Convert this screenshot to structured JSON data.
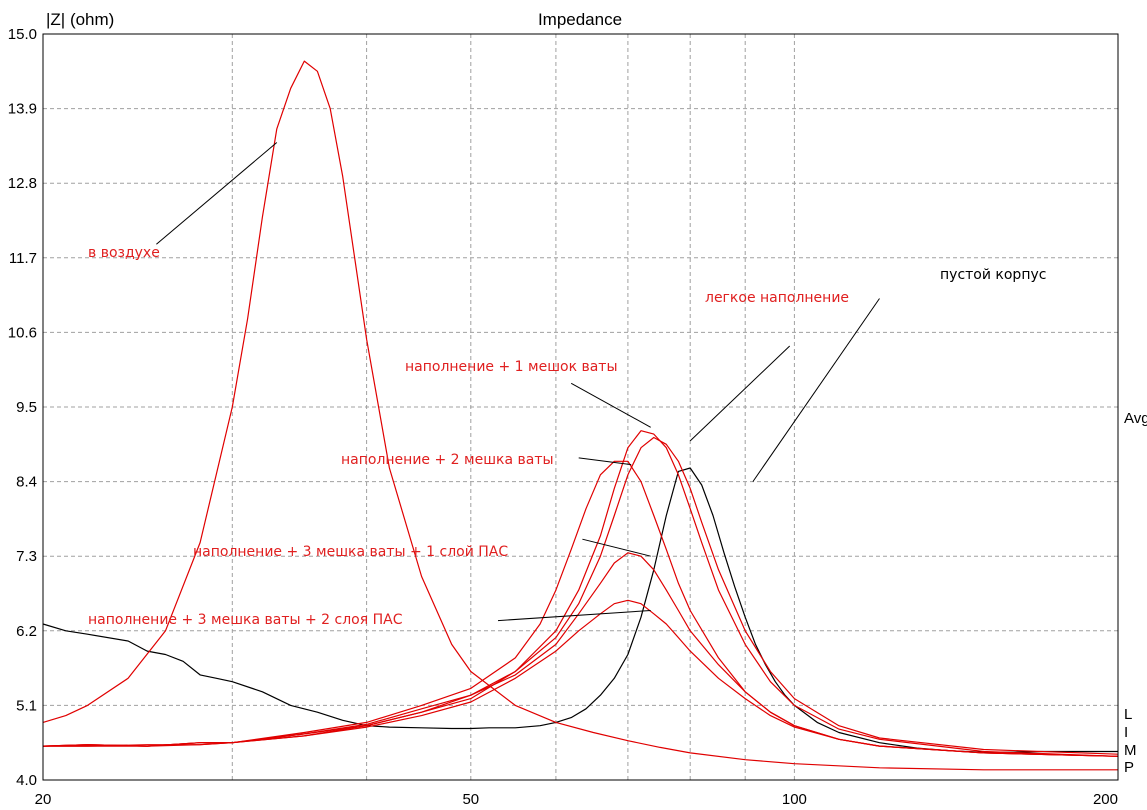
{
  "chart_data": {
    "type": "line",
    "title": "Impedance",
    "ylabel": "|Z| (ohm)",
    "xscale": "log",
    "xlim": [
      20,
      200
    ],
    "ylim": [
      4.0,
      15.0
    ],
    "x_ticks": [
      "20",
      "50",
      "100",
      "200"
    ],
    "y_ticks": [
      "15.0",
      "13.9",
      "12.8",
      "11.7",
      "10.6",
      "9.5",
      "8.4",
      "7.3",
      "6.2",
      "5.1",
      "4.0"
    ],
    "grid": true,
    "right_labels": [
      "Avg",
      "L",
      "I",
      "M",
      "P"
    ],
    "annotations": [
      "в воздухе",
      "легкое наполнение",
      "пустой корпус",
      "наполнение + 1 мешок ваты",
      "наполнение + 2 мешка ваты",
      "наполнение + 3 мешка ваты + 1 слой ПАС",
      "наполнение + 3 мешка ваты + 2 слоя ПАС"
    ],
    "colors": {
      "black_series": "#000000",
      "red_series": "#e00000",
      "grid": "#a0a0a0"
    },
    "series": [
      {
        "color": "#000000",
        "x": [
          20,
          21,
          22,
          24,
          25,
          26,
          27,
          28,
          29,
          30,
          32,
          34,
          36,
          38,
          40,
          42,
          45,
          48,
          50,
          52,
          55,
          58,
          60,
          62,
          64,
          66,
          68,
          70,
          72,
          74,
          76,
          78,
          80,
          82,
          84,
          86,
          88,
          90,
          92,
          94,
          96,
          98,
          100,
          105,
          110,
          120,
          130,
          140,
          150,
          160,
          170,
          180,
          200
        ],
        "y": [
          6.3,
          6.2,
          6.15,
          6.05,
          5.9,
          5.85,
          5.75,
          5.55,
          5.5,
          5.45,
          5.3,
          5.1,
          5.0,
          4.88,
          4.8,
          4.78,
          4.77,
          4.76,
          4.76,
          4.77,
          4.77,
          4.8,
          4.85,
          4.92,
          5.05,
          5.25,
          5.5,
          5.85,
          6.4,
          7.1,
          7.9,
          8.55,
          8.6,
          8.35,
          7.9,
          7.35,
          6.85,
          6.4,
          6.0,
          5.7,
          5.45,
          5.25,
          5.1,
          4.85,
          4.7,
          4.55,
          4.47,
          4.43,
          4.41,
          4.41,
          4.42,
          4.42,
          4.42
        ]
      },
      {
        "color": "#e00000",
        "x": [
          20,
          21,
          22,
          24,
          26,
          28,
          30,
          31,
          32,
          33,
          34,
          35,
          36,
          37,
          38,
          40,
          42,
          45,
          48,
          50,
          55,
          60,
          65,
          70,
          75,
          80,
          90,
          100,
          120,
          150,
          200
        ],
        "y": [
          4.85,
          4.95,
          5.1,
          5.5,
          6.2,
          7.5,
          9.5,
          10.8,
          12.3,
          13.6,
          14.2,
          14.6,
          14.45,
          13.9,
          12.9,
          10.5,
          8.6,
          7.0,
          6.0,
          5.6,
          5.1,
          4.85,
          4.7,
          4.58,
          4.48,
          4.4,
          4.3,
          4.24,
          4.18,
          4.15,
          4.15
        ]
      },
      {
        "color": "#e00000",
        "x": [
          20,
          22,
          25,
          28,
          30,
          35,
          40,
          45,
          50,
          55,
          60,
          63,
          66,
          68,
          70,
          72,
          74,
          76,
          78,
          80,
          82,
          85,
          90,
          95,
          100,
          110,
          120,
          150,
          200
        ],
        "y": [
          4.5,
          4.52,
          4.5,
          4.52,
          4.55,
          4.65,
          4.8,
          5.0,
          5.2,
          5.6,
          6.2,
          6.8,
          7.6,
          8.3,
          8.9,
          9.15,
          9.1,
          8.9,
          8.5,
          8.0,
          7.5,
          6.8,
          6.0,
          5.45,
          5.1,
          4.75,
          4.6,
          4.42,
          4.35
        ]
      },
      {
        "color": "#e00000",
        "x": [
          20,
          22,
          25,
          28,
          30,
          35,
          40,
          45,
          50,
          55,
          60,
          63,
          66,
          68,
          70,
          72,
          74,
          76,
          78,
          80,
          82,
          85,
          90,
          95,
          100,
          110,
          120,
          150,
          200
        ],
        "y": [
          4.5,
          4.5,
          4.52,
          4.52,
          4.55,
          4.68,
          4.82,
          5.05,
          5.25,
          5.6,
          6.1,
          6.6,
          7.3,
          7.9,
          8.5,
          8.9,
          9.05,
          8.95,
          8.7,
          8.3,
          7.8,
          7.1,
          6.2,
          5.6,
          5.2,
          4.8,
          4.62,
          4.45,
          4.38
        ]
      },
      {
        "color": "#e00000",
        "x": [
          20,
          22,
          25,
          28,
          30,
          35,
          40,
          45,
          50,
          55,
          58,
          60,
          62,
          64,
          66,
          68,
          70,
          72,
          74,
          76,
          78,
          80,
          85,
          90,
          95,
          100,
          110,
          120,
          150,
          200
        ],
        "y": [
          4.5,
          4.52,
          4.5,
          4.55,
          4.55,
          4.7,
          4.85,
          5.1,
          5.35,
          5.8,
          6.3,
          6.8,
          7.4,
          8.0,
          8.5,
          8.7,
          8.7,
          8.4,
          7.9,
          7.4,
          6.9,
          6.5,
          5.8,
          5.3,
          5.0,
          4.8,
          4.6,
          4.5,
          4.4,
          4.35
        ]
      },
      {
        "color": "#e00000",
        "x": [
          20,
          22,
          25,
          28,
          30,
          35,
          40,
          45,
          50,
          55,
          60,
          63,
          66,
          68,
          70,
          72,
          74,
          76,
          78,
          80,
          85,
          90,
          95,
          100,
          110,
          120,
          150,
          200
        ],
        "y": [
          4.5,
          4.5,
          4.5,
          4.55,
          4.55,
          4.68,
          4.8,
          5.0,
          5.25,
          5.55,
          6.0,
          6.45,
          6.9,
          7.2,
          7.35,
          7.3,
          7.1,
          6.8,
          6.5,
          6.2,
          5.7,
          5.3,
          5.0,
          4.8,
          4.6,
          4.5,
          4.4,
          4.35
        ]
      },
      {
        "color": "#e00000",
        "x": [
          20,
          22,
          25,
          28,
          30,
          35,
          40,
          45,
          50,
          55,
          60,
          63,
          66,
          68,
          70,
          72,
          74,
          76,
          78,
          80,
          85,
          90,
          95,
          100,
          110,
          120,
          150,
          200
        ],
        "y": [
          4.5,
          4.52,
          4.5,
          4.55,
          4.55,
          4.65,
          4.78,
          4.95,
          5.15,
          5.5,
          5.9,
          6.2,
          6.45,
          6.6,
          6.65,
          6.6,
          6.45,
          6.3,
          6.1,
          5.9,
          5.5,
          5.2,
          4.95,
          4.78,
          4.6,
          4.5,
          4.4,
          4.35
        ]
      }
    ]
  },
  "leaders": [
    {
      "from": [
        25.5,
        11.9
      ],
      "to": [
        33,
        13.4
      ],
      "color": "#000000"
    },
    {
      "from": [
        99,
        10.4
      ],
      "to": [
        80,
        9.0
      ],
      "color": "#000000"
    },
    {
      "from": [
        120,
        11.1
      ],
      "to": [
        91.5,
        8.4
      ],
      "color": "#000000"
    },
    {
      "from": [
        62,
        9.85
      ],
      "to": [
        73.5,
        9.2
      ],
      "color": "#000000"
    },
    {
      "from": [
        63,
        8.75
      ],
      "to": [
        70.5,
        8.65
      ],
      "color": "#000000"
    },
    {
      "from": [
        63.5,
        7.55
      ],
      "to": [
        73.5,
        7.3
      ],
      "color": "#000000"
    },
    {
      "from": [
        53,
        6.35
      ],
      "to": [
        73.5,
        6.5
      ],
      "color": "#000000"
    }
  ]
}
